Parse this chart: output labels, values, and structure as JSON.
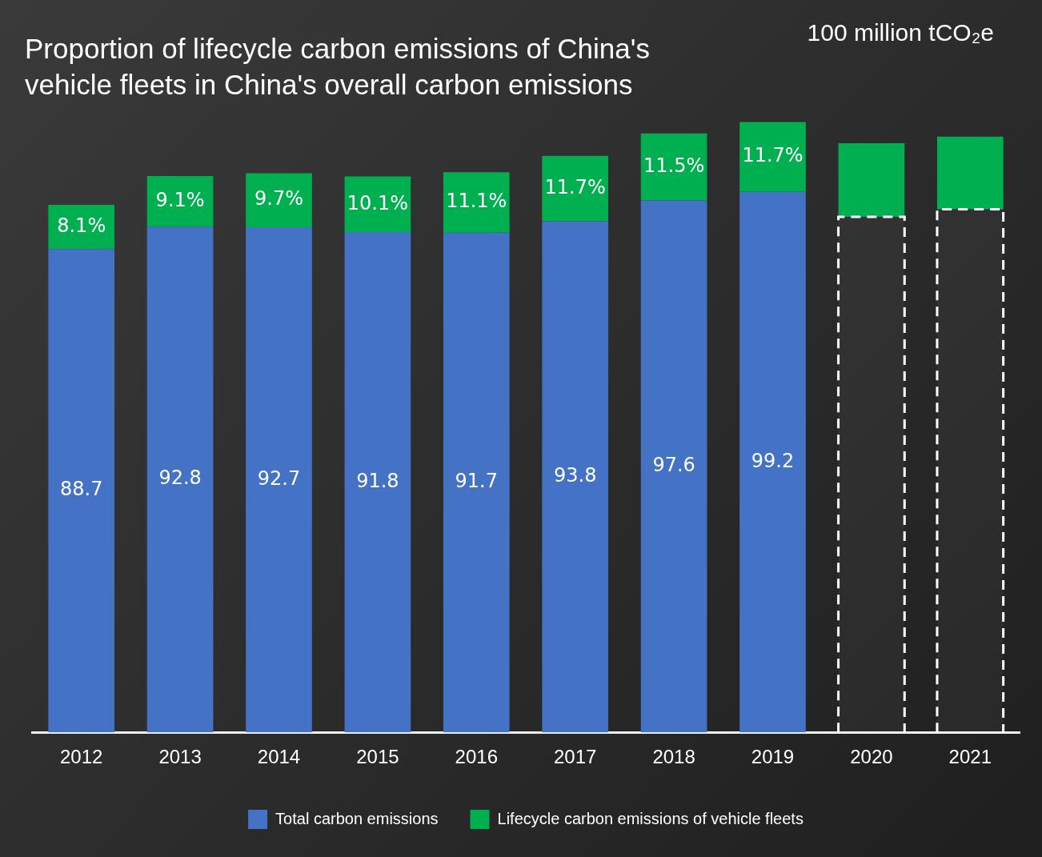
{
  "chart_data": {
    "type": "bar",
    "stacked": true,
    "title": "Proportion of lifecycle carbon emissions of China's vehicle fleets in China's overall carbon emissions",
    "ylabel": "100 million tCO₂e",
    "categories": [
      "2012",
      "2013",
      "2014",
      "2015",
      "2016",
      "2017",
      "2018",
      "2019",
      "2020",
      "2021"
    ],
    "annotations": [
      "8.1%",
      "9.1%",
      "9.7%",
      "10.1%",
      "11.1%",
      "11.7%",
      "11.5%",
      "11.7%"
    ],
    "series": [
      {
        "name": "Total carbon emissions",
        "color": "#4472c4",
        "values": [
          88.7,
          92.8,
          92.7,
          91.8,
          91.7,
          93.8,
          97.6,
          99.2,
          null,
          null
        ],
        "value_labels": [
          "88.7",
          "92.8",
          "92.7",
          "91.8",
          "91.7",
          "93.8",
          "97.6",
          "99.2",
          null,
          null
        ]
      },
      {
        "color": "#ffffff",
        "line_style": "dashed",
        "values": [
          null,
          null,
          null,
          null,
          null,
          null,
          null,
          null,
          94.6,
          96.0
        ]
      },
      {
        "name": "Lifecycle carbon emissions of vehicle fleets",
        "color": "#00b050",
        "values": [
          8.1,
          9.3,
          9.9,
          10.2,
          11.1,
          12.0,
          12.3,
          12.8,
          13.5,
          13.3
        ]
      }
    ],
    "grid": false,
    "legend": "bottom",
    "tick_labels": "x"
  }
}
